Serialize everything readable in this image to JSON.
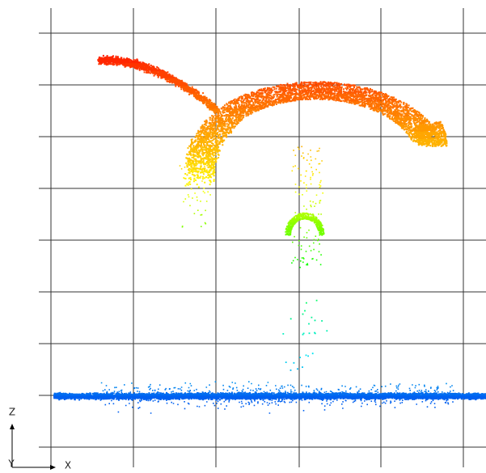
{
  "axes": {
    "z": "Z",
    "y": "Y",
    "x": "X"
  }
}
